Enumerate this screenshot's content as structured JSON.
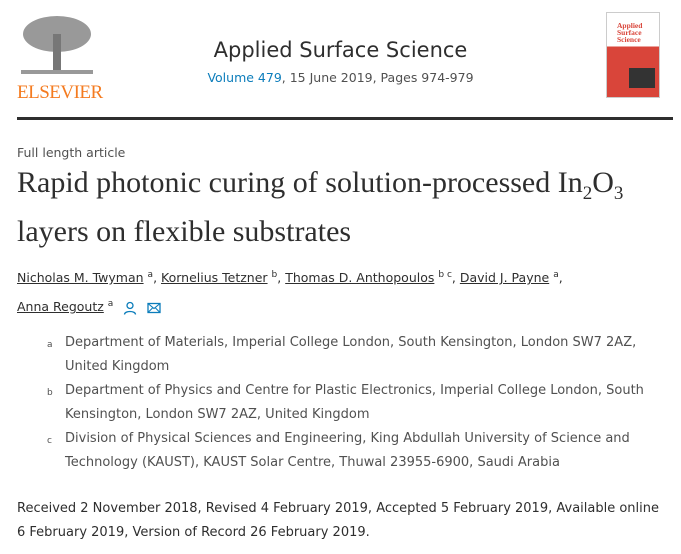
{
  "publisher": "ELSEVIER",
  "journal": {
    "title": "Applied Surface Science",
    "volume_link": "Volume 479",
    "volume_rest": ", 15 June 2019, Pages 974-979",
    "cover_title": "Applied Surface Science"
  },
  "article_type": "Full length article",
  "title_part1": "Rapid photonic curing of solution-processed In",
  "title_sub1": "2",
  "title_mid": "O",
  "title_sub2": "3",
  "title_part2": " layers on flexible substrates",
  "authors": [
    {
      "name": "Nicholas M. Twyman",
      "aff": "a"
    },
    {
      "name": "Kornelius Tetzner",
      "aff": "b"
    },
    {
      "name": "Thomas D. Anthopoulos",
      "aff": "b c"
    },
    {
      "name": "David J. Payne",
      "aff": "a"
    },
    {
      "name": "Anna Regoutz",
      "aff": "a"
    }
  ],
  "affiliations": [
    {
      "label": "a",
      "text": "Department of Materials, Imperial College London, South Kensington, London SW7 2AZ, United Kingdom"
    },
    {
      "label": "b",
      "text": "Department of Physics and Centre for Plastic Electronics, Imperial College London, South Kensington, London SW7 2AZ, United Kingdom"
    },
    {
      "label": "c",
      "text": "Division of Physical Sciences and Engineering, King Abdullah University of Science and Technology (KAUST), KAUST Solar Centre, Thuwal 23955-6900, Saudi Arabia"
    }
  ],
  "dates": "Received 2 November 2018, Revised 4 February 2019, Accepted 5 February 2019, Available online 6 February 2019, Version of Record 26 February 2019.",
  "colors": {
    "link": "#0c7dbb",
    "elsevier": "#f47b20",
    "cover": "#d9453a"
  }
}
